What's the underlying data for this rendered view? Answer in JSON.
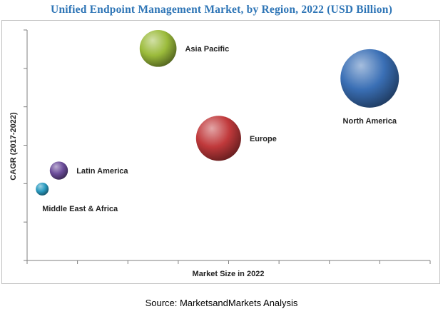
{
  "chart_data": {
    "type": "bubble",
    "title": "Unified Endpoint Management Market, by Region, 2022 (USD Billion)",
    "xlabel": "Market Size in 2022",
    "ylabel": "CAGR (2017-2022)",
    "xlim": [
      0,
      8
    ],
    "ylim": [
      0,
      10
    ],
    "grid": false,
    "tick_labels": "none",
    "series": [
      {
        "name": "North America",
        "x": 6.8,
        "y": 7.9,
        "size": 1.0,
        "color": "#3a6fb5",
        "label_side": "below"
      },
      {
        "name": "Europe",
        "x": 3.8,
        "y": 5.3,
        "size": 0.77,
        "color": "#c0393b",
        "label_side": "right"
      },
      {
        "name": "Asia Pacific",
        "x": 2.6,
        "y": 9.2,
        "size": 0.63,
        "color": "#9bbb3b",
        "label_side": "right"
      },
      {
        "name": "Latin America",
        "x": 0.63,
        "y": 3.9,
        "size": 0.31,
        "color": "#6b4c9a",
        "label_side": "right"
      },
      {
        "name": "Middle East & Africa",
        "x": 0.3,
        "y": 3.1,
        "size": 0.22,
        "color": "#2a9bc0",
        "label_side": "below"
      }
    ]
  },
  "source": "Source: MarketsandMarkets Analysis"
}
